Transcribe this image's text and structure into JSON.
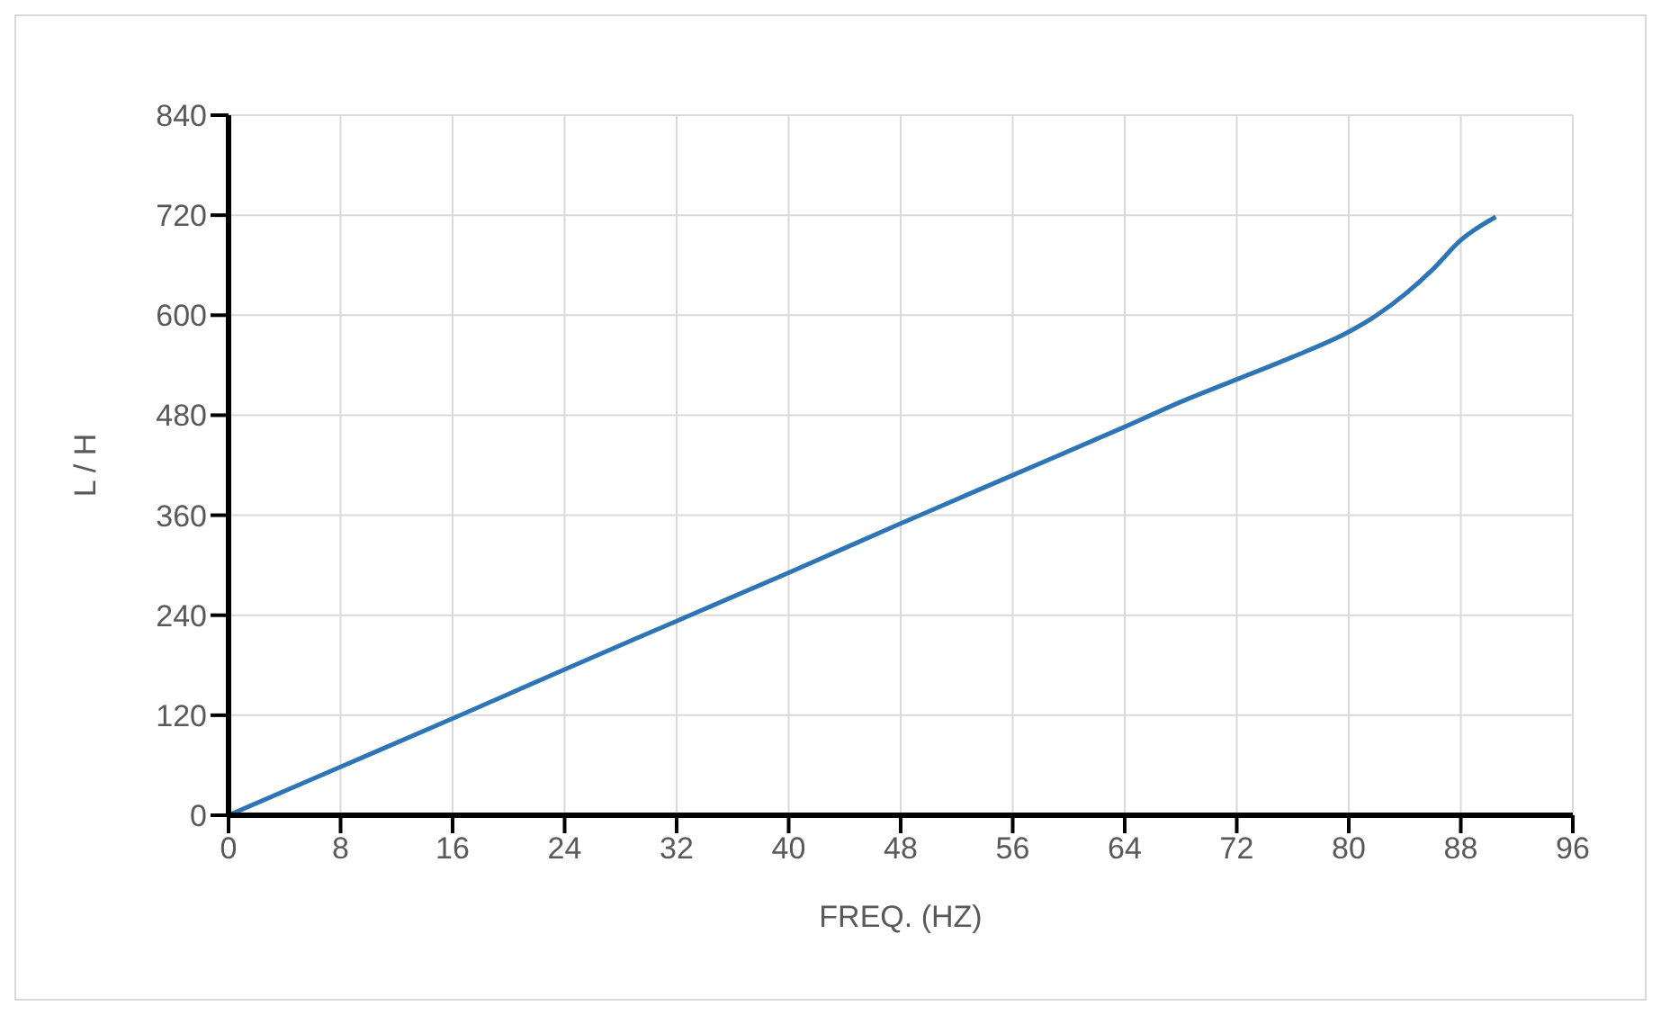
{
  "chart_data": {
    "type": "line",
    "xlabel": "FREQ. (HZ)",
    "ylabel": "L / H",
    "series": [
      {
        "color": "#2e75b6",
        "x": [
          0,
          8,
          16,
          24,
          32,
          40,
          48,
          56,
          64,
          68,
          72,
          76,
          80,
          82,
          84,
          86,
          88,
          90.5
        ],
        "values": [
          0,
          58,
          116,
          175,
          233,
          291,
          350,
          408,
          466,
          496,
          523,
          550,
          580,
          600,
          625,
          655,
          690,
          718
        ]
      }
    ],
    "xlim": [
      0,
      96
    ],
    "xticks": [
      0,
      8,
      16,
      24,
      32,
      40,
      48,
      56,
      64,
      72,
      80,
      88,
      96
    ],
    "ylim": [
      0,
      840
    ],
    "yticks": [
      0,
      120,
      240,
      360,
      480,
      600,
      720,
      840
    ],
    "grid": true,
    "legend": false,
    "marker": "none",
    "line_style": "solid"
  }
}
